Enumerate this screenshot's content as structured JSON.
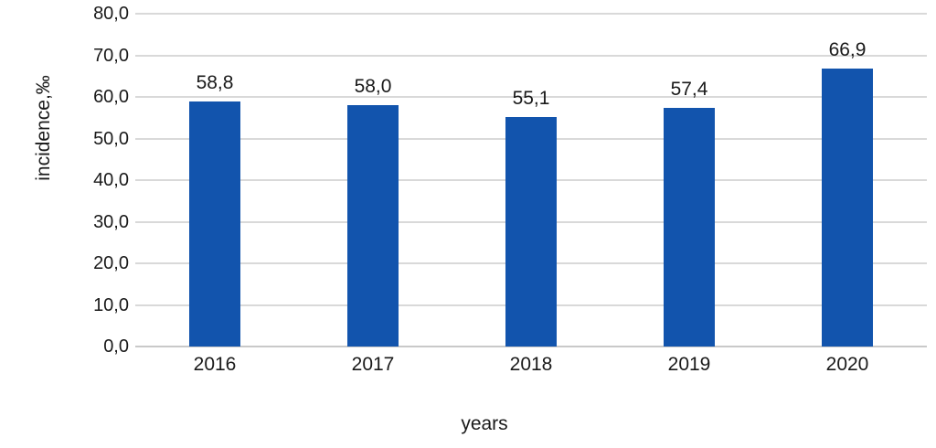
{
  "chart_data": {
    "type": "bar",
    "categories": [
      "2016",
      "2017",
      "2018",
      "2019",
      "2020"
    ],
    "values": [
      58.8,
      58.0,
      55.1,
      57.4,
      66.9
    ],
    "value_labels": [
      "58,8",
      "58,0",
      "55,1",
      "57,4",
      "66,9"
    ],
    "title": "",
    "xlabel": "years",
    "ylabel": "incidence,‰",
    "ylim": [
      0,
      80
    ],
    "ytick_step": 10,
    "ytick_labels": [
      "0,0",
      "10,0",
      "20,0",
      "30,0",
      "40,0",
      "50,0",
      "60,0",
      "70,0",
      "80,0"
    ],
    "grid": true,
    "legend_position": "none",
    "colors": {
      "bar": "#1254ad",
      "gridline": "#d9d9d9",
      "axis_line": "#c9c9c9",
      "text": "#1a1a1a",
      "background": "#ffffff"
    }
  }
}
